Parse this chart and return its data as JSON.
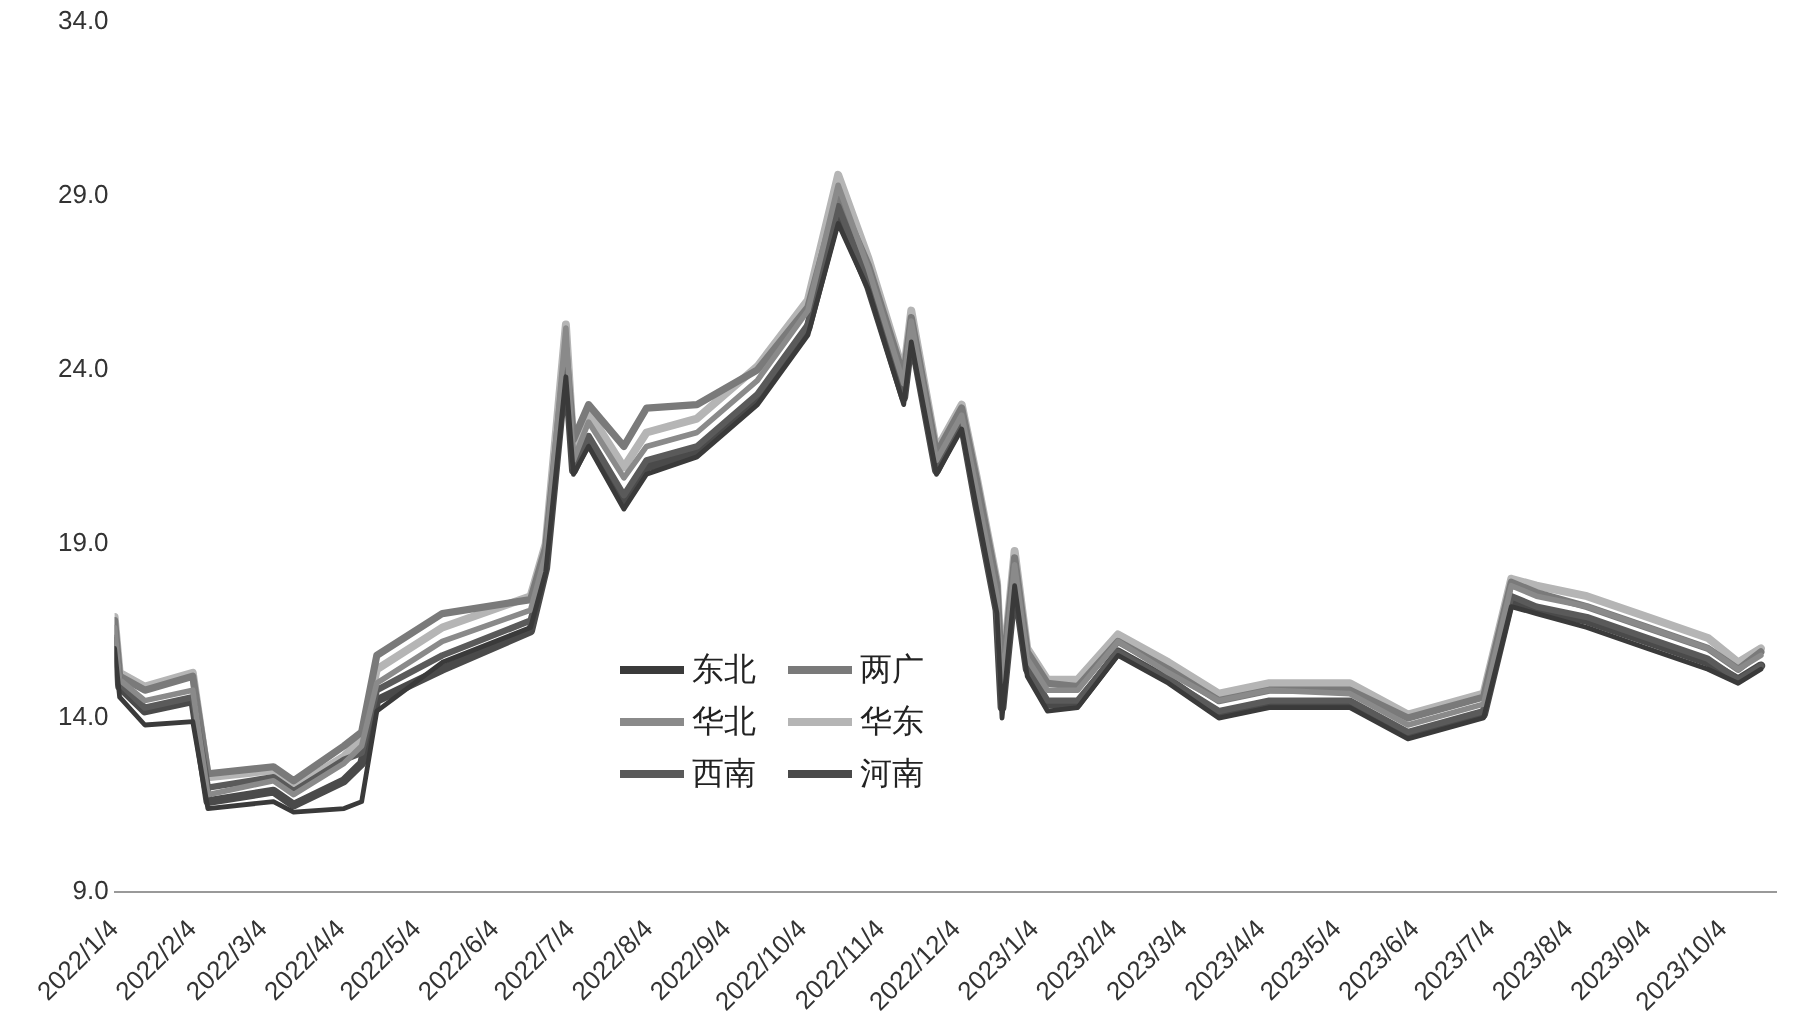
{
  "chart_data": {
    "type": "line",
    "x": [
      "2022-01-04",
      "2022-01-06",
      "2022-01-16",
      "2022-02-04",
      "2022-02-10",
      "2022-03-08",
      "2022-03-16",
      "2022-04-05",
      "2022-04-12",
      "2022-04-18",
      "2022-05-14",
      "2022-06-18",
      "2022-06-24",
      "2022-07-02",
      "2022-07-05",
      "2022-07-11",
      "2022-07-25",
      "2022-08-03",
      "2022-08-23",
      "2022-09-16",
      "2022-10-06",
      "2022-10-18",
      "2022-10-30",
      "2022-11-13",
      "2022-11-16",
      "2022-11-26",
      "2022-12-06",
      "2022-12-12",
      "2022-12-20",
      "2022-12-22",
      "2022-12-27",
      "2023-01-01",
      "2023-01-09",
      "2023-01-21",
      "2023-02-06",
      "2023-02-26",
      "2023-03-18",
      "2023-04-07",
      "2023-05-09",
      "2023-06-01",
      "2023-07-01",
      "2023-07-12",
      "2023-07-22",
      "2023-08-11",
      "2023-09-04",
      "2023-09-28",
      "2023-10-10",
      "2023-10-19"
    ],
    "series": [
      {
        "name": "东北",
        "color": "#3a3a3a",
        "values": [
          16.0,
          14.6,
          13.8,
          13.9,
          11.4,
          11.6,
          11.3,
          11.4,
          11.6,
          14.2,
          15.6,
          16.6,
          18.2,
          23.8,
          21.0,
          21.8,
          20.0,
          21.0,
          21.5,
          23.0,
          25.0,
          28.2,
          26.3,
          23.0,
          24.8,
          21.0,
          22.3,
          20.0,
          17.0,
          14.0,
          17.8,
          15.2,
          14.2,
          14.3,
          15.8,
          15.0,
          14.0,
          14.3,
          14.3,
          13.4,
          14.0,
          17.2,
          17.0,
          16.6,
          16.0,
          15.4,
          15.0,
          15.4
        ]
      },
      {
        "name": "华北",
        "color": "#8a8a8a",
        "values": [
          16.6,
          15.1,
          14.5,
          14.8,
          11.8,
          12.2,
          11.8,
          12.7,
          13.2,
          15.0,
          16.2,
          17.1,
          18.7,
          25.2,
          21.4,
          22.5,
          20.9,
          21.8,
          22.2,
          23.7,
          25.7,
          29.3,
          26.9,
          23.6,
          25.4,
          21.4,
          22.7,
          20.5,
          17.5,
          14.8,
          18.4,
          15.7,
          14.8,
          14.8,
          16.2,
          15.3,
          14.5,
          14.8,
          14.7,
          13.8,
          14.4,
          17.8,
          17.5,
          17.2,
          16.6,
          16.0,
          15.4,
          15.8
        ]
      },
      {
        "name": "西南",
        "color": "#5a5a5a",
        "values": [
          16.3,
          15.0,
          14.3,
          14.6,
          12.0,
          12.3,
          11.9,
          12.8,
          13.0,
          14.8,
          15.8,
          16.8,
          18.4,
          24.6,
          21.2,
          22.1,
          20.4,
          21.4,
          21.8,
          23.3,
          25.3,
          28.7,
          26.5,
          23.3,
          25.1,
          21.2,
          22.4,
          20.2,
          17.2,
          14.5,
          18.0,
          15.5,
          14.5,
          14.5,
          15.9,
          15.1,
          14.2,
          14.5,
          14.5,
          13.6,
          14.2,
          17.5,
          17.2,
          16.9,
          16.3,
          15.7,
          15.1,
          15.5
        ]
      },
      {
        "name": "两广",
        "color": "#7a7a7a",
        "values": [
          16.8,
          15.2,
          14.8,
          15.2,
          12.4,
          12.6,
          12.2,
          13.2,
          13.6,
          15.8,
          17.0,
          17.4,
          18.9,
          24.6,
          22.0,
          23.0,
          21.8,
          22.9,
          23.0,
          24.0,
          25.8,
          29.0,
          27.0,
          23.8,
          25.5,
          21.6,
          22.9,
          20.8,
          17.8,
          15.0,
          18.6,
          15.9,
          15.0,
          14.9,
          16.2,
          15.4,
          14.5,
          14.8,
          14.8,
          14.0,
          14.6,
          17.9,
          17.6,
          17.2,
          16.6,
          16.0,
          15.4,
          15.9
        ]
      },
      {
        "name": "华东",
        "color": "#b5b5b5",
        "values": [
          16.9,
          15.3,
          14.9,
          15.3,
          12.3,
          12.5,
          12.0,
          12.9,
          13.4,
          15.4,
          16.6,
          17.5,
          19.0,
          25.3,
          21.8,
          22.8,
          21.2,
          22.2,
          22.6,
          24.1,
          26.0,
          29.6,
          27.2,
          23.9,
          25.7,
          21.7,
          23.0,
          20.9,
          17.9,
          15.1,
          18.8,
          16.0,
          15.1,
          15.1,
          16.4,
          15.6,
          14.7,
          15.0,
          15.0,
          14.1,
          14.7,
          18.0,
          17.8,
          17.5,
          16.9,
          16.3,
          15.6,
          16.0
        ]
      },
      {
        "name": "河南",
        "color": "#4a4a4a",
        "values": [
          16.2,
          14.9,
          14.2,
          14.5,
          11.6,
          11.9,
          11.5,
          12.2,
          12.7,
          14.5,
          15.4,
          16.5,
          18.3,
          24.2,
          21.1,
          22.0,
          20.2,
          21.2,
          21.6,
          23.2,
          25.2,
          28.5,
          26.4,
          23.2,
          25.0,
          21.1,
          22.5,
          20.1,
          17.1,
          14.3,
          17.9,
          15.4,
          14.4,
          14.4,
          15.9,
          15.1,
          14.1,
          14.4,
          14.4,
          13.5,
          14.1,
          17.4,
          17.1,
          16.8,
          16.2,
          15.6,
          15.1,
          15.5
        ]
      }
    ],
    "xlim": [
      "2022-01-04",
      "2023-10-25"
    ],
    "xticks": [
      {
        "value": "2022-01-04",
        "label": "2022/1/4"
      },
      {
        "value": "2022-02-04",
        "label": "2022/2/4"
      },
      {
        "value": "2022-03-04",
        "label": "2022/3/4"
      },
      {
        "value": "2022-04-04",
        "label": "2022/4/4"
      },
      {
        "value": "2022-05-04",
        "label": "2022/5/4"
      },
      {
        "value": "2022-06-04",
        "label": "2022/6/4"
      },
      {
        "value": "2022-07-04",
        "label": "2022/7/4"
      },
      {
        "value": "2022-08-04",
        "label": "2022/8/4"
      },
      {
        "value": "2022-09-04",
        "label": "2022/9/4"
      },
      {
        "value": "2022-10-04",
        "label": "2022/10/4"
      },
      {
        "value": "2022-11-04",
        "label": "2022/11/4"
      },
      {
        "value": "2022-12-04",
        "label": "2022/12/4"
      },
      {
        "value": "2023-01-04",
        "label": "2023/1/4"
      },
      {
        "value": "2023-02-04",
        "label": "2023/2/4"
      },
      {
        "value": "2023-03-04",
        "label": "2023/3/4"
      },
      {
        "value": "2023-04-04",
        "label": "2023/4/4"
      },
      {
        "value": "2023-05-04",
        "label": "2023/5/4"
      },
      {
        "value": "2023-06-04",
        "label": "2023/6/4"
      },
      {
        "value": "2023-07-04",
        "label": "2023/7/4"
      },
      {
        "value": "2023-08-04",
        "label": "2023/8/4"
      },
      {
        "value": "2023-09-04",
        "label": "2023/9/4"
      },
      {
        "value": "2023-10-04",
        "label": "2023/10/4"
      }
    ],
    "ylim": [
      9,
      34
    ],
    "yticks": [
      {
        "value": 9,
        "label": "9.0"
      },
      {
        "value": 14,
        "label": "14.0"
      },
      {
        "value": 19,
        "label": "19.0"
      },
      {
        "value": 24,
        "label": "24.0"
      },
      {
        "value": 29,
        "label": "29.0"
      },
      {
        "value": 34,
        "label": "34.0"
      }
    ],
    "grid": false,
    "legend": "bottom",
    "marker": "none"
  }
}
